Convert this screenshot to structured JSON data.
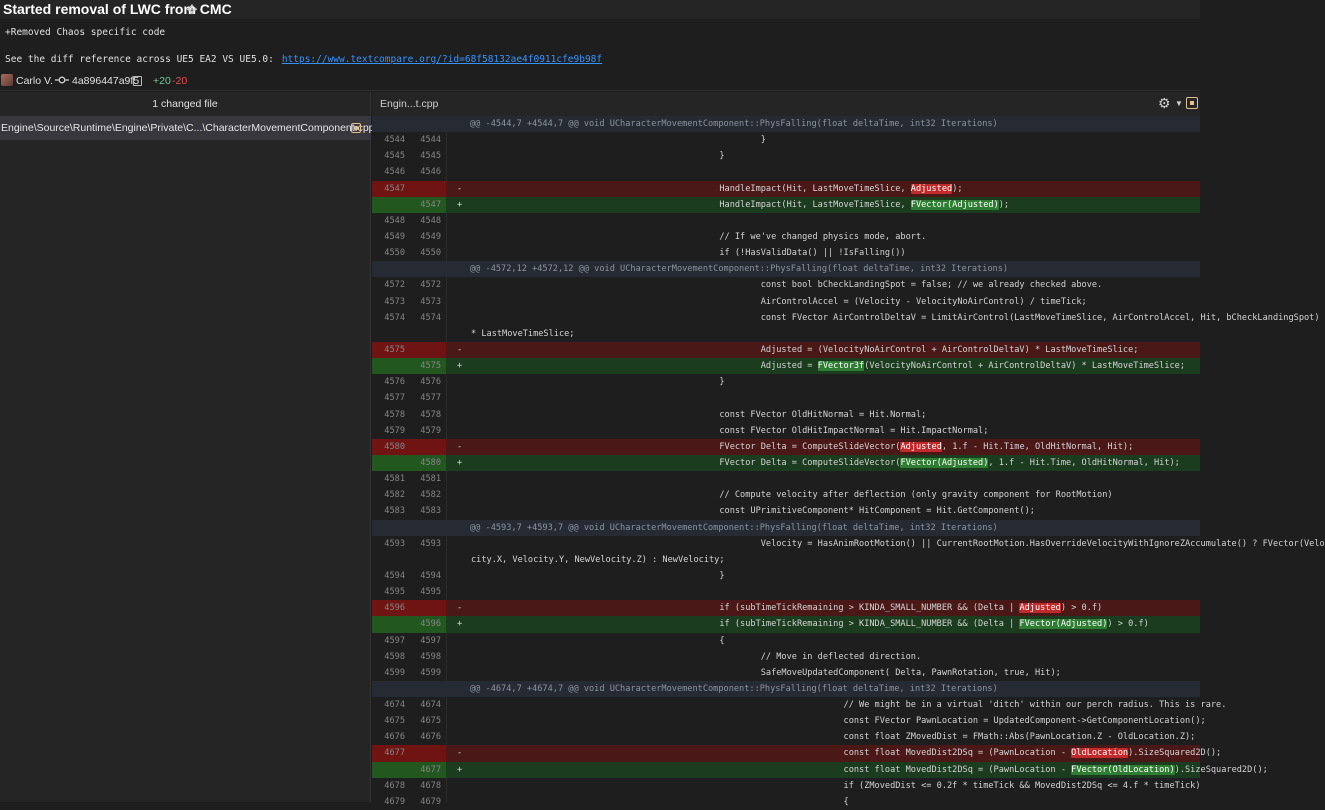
{
  "header": {
    "title": "Started removal of LWC from CMC",
    "message_line1": "+Removed Chaos specific code",
    "message_line2_prefix": "See the diff reference across UE5 EA2 VS UE5.0:",
    "message_link": "https://www.textcompare.org/?id=68f58132ae4f0911cfe9b98f",
    "author": "Carlo V.",
    "commit_hash": "4a896447a9f5",
    "additions": "+20",
    "deletions": "-20"
  },
  "left_panel": {
    "heading": "1 changed file",
    "file_path": "Engine\\Source\\Runtime\\Engine\\Private\\C...\\CharacterMovementComponent.cpp"
  },
  "right_panel": {
    "tab_name": "Engin...t.cpp"
  },
  "diff_rows": [
    {
      "type": "hunk",
      "old": "",
      "new": "",
      "sign": "",
      "text": "@@ -4544,7 +4544,7 @@ void UCharacterMovementComponent::PhysFalling(float deltaTime, int32 Iterations)"
    },
    {
      "type": "ctx",
      "old": "4544",
      "new": "4544",
      "sign": "",
      "text": "                                                        }"
    },
    {
      "type": "ctx",
      "old": "4545",
      "new": "4545",
      "sign": "",
      "text": "                                                }"
    },
    {
      "type": "ctx",
      "old": "4546",
      "new": "4546",
      "sign": "",
      "text": ""
    },
    {
      "type": "del",
      "old": "4547",
      "new": "",
      "sign": "-",
      "pre": "                                                HandleImpact(Hit, LastMoveTimeSlice, ",
      "hl": "Adjusted",
      "post": ");"
    },
    {
      "type": "add",
      "old": "",
      "new": "4547",
      "sign": "+",
      "pre": "                                                HandleImpact(Hit, LastMoveTimeSlice, ",
      "hl": "FVector(Adjusted)",
      "post": ");"
    },
    {
      "type": "ctx",
      "old": "4548",
      "new": "4548",
      "sign": "",
      "text": ""
    },
    {
      "type": "ctx",
      "old": "4549",
      "new": "4549",
      "sign": "",
      "text": "                                                // If we've changed physics mode, abort."
    },
    {
      "type": "ctx",
      "old": "4550",
      "new": "4550",
      "sign": "",
      "text": "                                                if (!HasValidData() || !IsFalling())"
    },
    {
      "type": "hunk",
      "old": "",
      "new": "",
      "sign": "",
      "text": "@@ -4572,12 +4572,12 @@ void UCharacterMovementComponent::PhysFalling(float deltaTime, int32 Iterations)"
    },
    {
      "type": "ctx",
      "old": "4572",
      "new": "4572",
      "sign": "",
      "text": "                                                        const bool bCheckLandingSpot = false; // we already checked above."
    },
    {
      "type": "ctx",
      "old": "4573",
      "new": "4573",
      "sign": "",
      "text": "                                                        AirControlAccel = (Velocity - VelocityNoAirControl) / timeTick;"
    },
    {
      "type": "ctx",
      "old": "4574",
      "new": "4574",
      "sign": "",
      "text": "                                                        const FVector AirControlDeltaV = LimitAirControl(LastMoveTimeSlice, AirControlAccel, Hit, bCheckLandingSpot)"
    },
    {
      "type": "wrap",
      "old": "",
      "new": "",
      "sign": "",
      "text": "* LastMoveTimeSlice;"
    },
    {
      "type": "del",
      "old": "4575",
      "new": "",
      "sign": "-",
      "pre": "                                                        Adjusted = (VelocityNoAirControl + AirControlDeltaV) * LastMoveTimeSlice;",
      "hl": "",
      "post": ""
    },
    {
      "type": "add",
      "old": "",
      "new": "4575",
      "sign": "+",
      "pre": "                                                        Adjusted = ",
      "hl": "FVector3f",
      "post": "(VelocityNoAirControl + AirControlDeltaV) * LastMoveTimeSlice;"
    },
    {
      "type": "ctx",
      "old": "4576",
      "new": "4576",
      "sign": "",
      "text": "                                                }"
    },
    {
      "type": "ctx",
      "old": "4577",
      "new": "4577",
      "sign": "",
      "text": ""
    },
    {
      "type": "ctx",
      "old": "4578",
      "new": "4578",
      "sign": "",
      "text": "                                                const FVector OldHitNormal = Hit.Normal;"
    },
    {
      "type": "ctx",
      "old": "4579",
      "new": "4579",
      "sign": "",
      "text": "                                                const FVector OldHitImpactNormal = Hit.ImpactNormal;"
    },
    {
      "type": "del",
      "old": "4580",
      "new": "",
      "sign": "-",
      "pre": "                                                FVector Delta = ComputeSlideVector(",
      "hl": "Adjusted",
      "post": ", 1.f - Hit.Time, OldHitNormal, Hit);"
    },
    {
      "type": "add",
      "old": "",
      "new": "4580",
      "sign": "+",
      "pre": "                                                FVector Delta = ComputeSlideVector(",
      "hl": "FVector(Adjusted)",
      "post": ", 1.f - Hit.Time, OldHitNormal, Hit);"
    },
    {
      "type": "ctx",
      "old": "4581",
      "new": "4581",
      "sign": "",
      "text": ""
    },
    {
      "type": "ctx",
      "old": "4582",
      "new": "4582",
      "sign": "",
      "text": "                                                // Compute velocity after deflection (only gravity component for RootMotion)"
    },
    {
      "type": "ctx",
      "old": "4583",
      "new": "4583",
      "sign": "",
      "text": "                                                const UPrimitiveComponent* HitComponent = Hit.GetComponent();"
    },
    {
      "type": "hunk",
      "old": "",
      "new": "",
      "sign": "",
      "text": "@@ -4593,7 +4593,7 @@ void UCharacterMovementComponent::PhysFalling(float deltaTime, int32 Iterations)"
    },
    {
      "type": "ctx",
      "old": "4593",
      "new": "4593",
      "sign": "",
      "text": "                                                        Velocity = HasAnimRootMotion() || CurrentRootMotion.HasOverrideVelocityWithIgnoreZAccumulate() ? FVector(Velo"
    },
    {
      "type": "wrap",
      "old": "",
      "new": "",
      "sign": "",
      "text": "city.X, Velocity.Y, NewVelocity.Z) : NewVelocity;"
    },
    {
      "type": "ctx",
      "old": "4594",
      "new": "4594",
      "sign": "",
      "text": "                                                }"
    },
    {
      "type": "ctx",
      "old": "4595",
      "new": "4595",
      "sign": "",
      "text": ""
    },
    {
      "type": "del",
      "old": "4596",
      "new": "",
      "sign": "-",
      "pre": "                                                if (subTimeTickRemaining > KINDA_SMALL_NUMBER && (Delta | ",
      "hl": "Adjusted",
      "post": ") > 0.f)"
    },
    {
      "type": "add",
      "old": "",
      "new": "4596",
      "sign": "+",
      "pre": "                                                if (subTimeTickRemaining > KINDA_SMALL_NUMBER && (Delta | ",
      "hl": "FVector(Adjusted)",
      "post": ") > 0.f)"
    },
    {
      "type": "ctx",
      "old": "4597",
      "new": "4597",
      "sign": "",
      "text": "                                                {"
    },
    {
      "type": "ctx",
      "old": "4598",
      "new": "4598",
      "sign": "",
      "text": "                                                        // Move in deflected direction."
    },
    {
      "type": "ctx",
      "old": "4599",
      "new": "4599",
      "sign": "",
      "text": "                                                        SafeMoveUpdatedComponent( Delta, PawnRotation, true, Hit);"
    },
    {
      "type": "hunk",
      "old": "",
      "new": "",
      "sign": "",
      "text": "@@ -4674,7 +4674,7 @@ void UCharacterMovementComponent::PhysFalling(float deltaTime, int32 Iterations)"
    },
    {
      "type": "ctx",
      "old": "4674",
      "new": "4674",
      "sign": "",
      "text": "                                                                        // We might be in a virtual 'ditch' within our perch radius. This is rare."
    },
    {
      "type": "ctx",
      "old": "4675",
      "new": "4675",
      "sign": "",
      "text": "                                                                        const FVector PawnLocation = UpdatedComponent->GetComponentLocation();"
    },
    {
      "type": "ctx",
      "old": "4676",
      "new": "4676",
      "sign": "",
      "text": "                                                                        const float ZMovedDist = FMath::Abs(PawnLocation.Z - OldLocation.Z);"
    },
    {
      "type": "del",
      "old": "4677",
      "new": "",
      "sign": "-",
      "pre": "                                                                        const float MovedDist2DSq = (PawnLocation - ",
      "hl": "OldLocation",
      "post": ").SizeSquared2D();"
    },
    {
      "type": "add",
      "old": "",
      "new": "4677",
      "sign": "+",
      "pre": "                                                                        const float MovedDist2DSq = (PawnLocation - ",
      "hl": "FVector(OldLocation)",
      "post": ").SizeSquared2D();"
    },
    {
      "type": "ctx",
      "old": "4678",
      "new": "4678",
      "sign": "",
      "text": "                                                                        if (ZMovedDist <= 0.2f * timeTick && MovedDist2DSq <= 4.f * timeTick)"
    },
    {
      "type": "ctx",
      "old": "4679",
      "new": "4679",
      "sign": "",
      "text": "                                                                        {"
    }
  ],
  "colors": {
    "deleted_bg": "#4b1818",
    "added_bg": "#1b3c1e",
    "link": "#3794ff"
  }
}
